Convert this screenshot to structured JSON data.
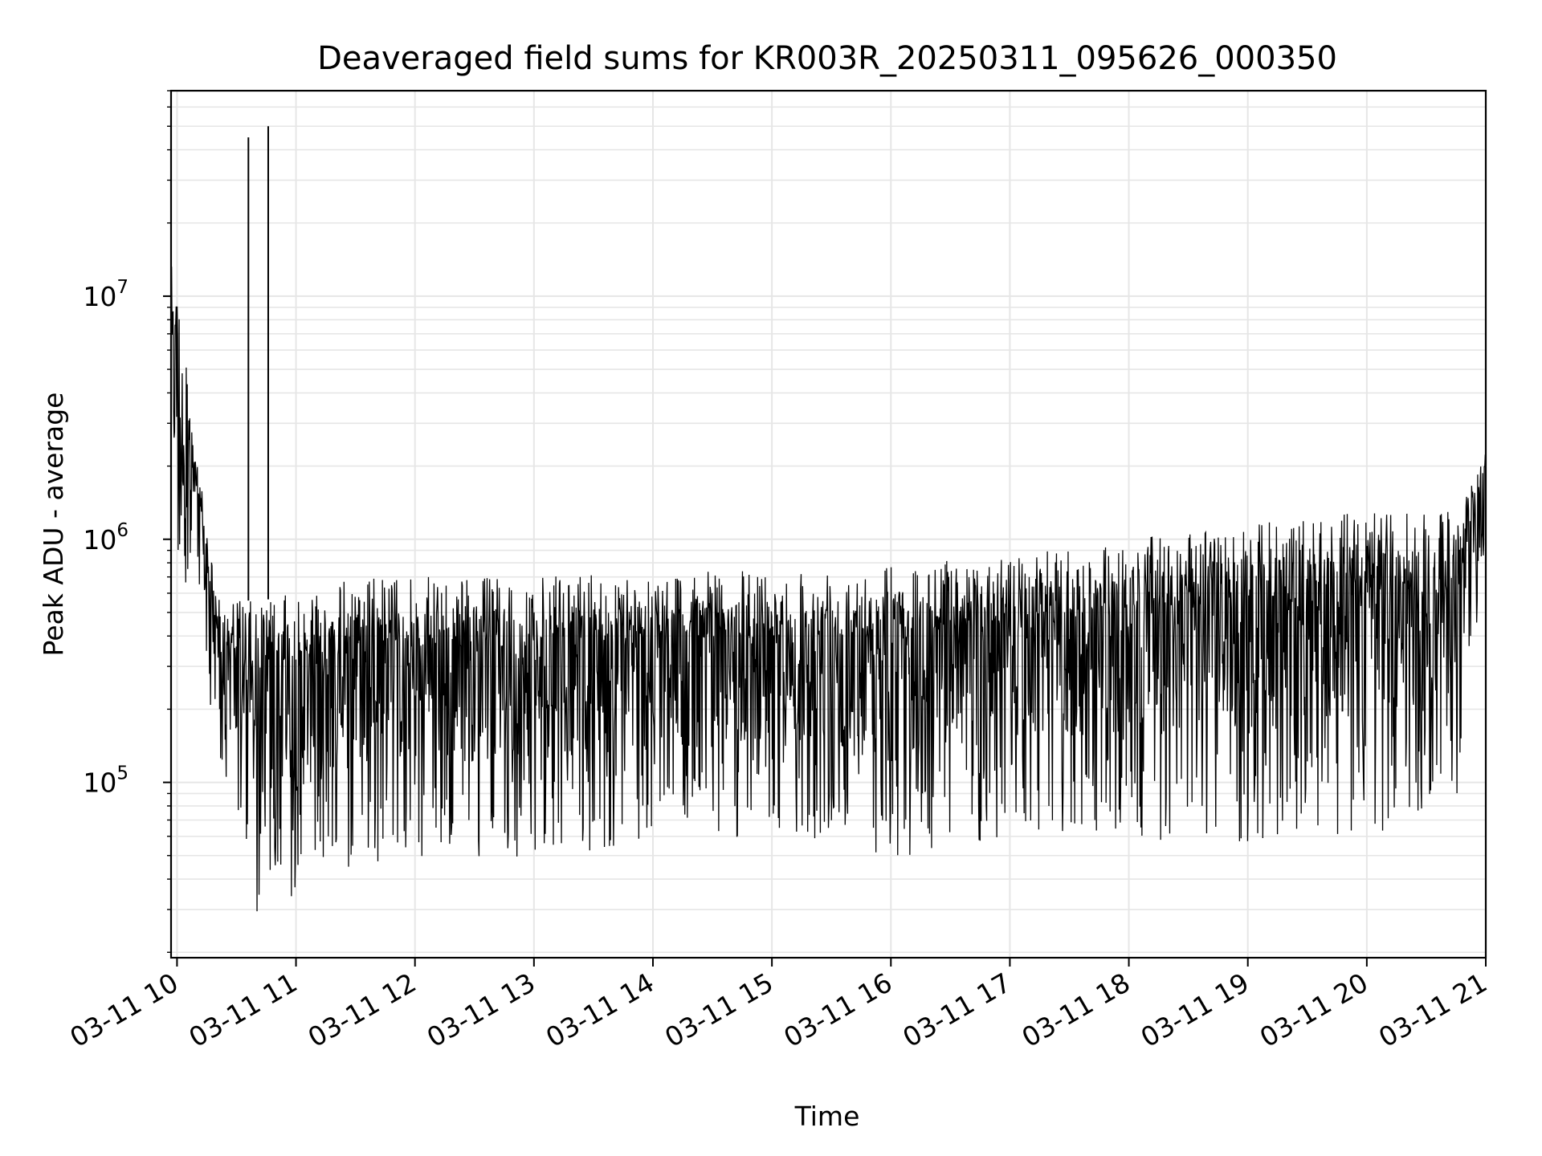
{
  "chart_data": {
    "type": "line",
    "title": "Deaveraged field sums for KR003R_20250311_095626_000350",
    "xlabel": "Time",
    "ylabel": "Peak ADU - average",
    "x_axis_type": "datetime (hours)",
    "xlim": [
      "2025-03-11 09:57",
      "2025-03-11 21:00"
    ],
    "y_scale": "log",
    "ylim": [
      19000,
      70000000
    ],
    "grid": true,
    "legend": "none",
    "x_ticks": [
      "03-11 10",
      "03-11 11",
      "03-11 12",
      "03-11 13",
      "03-11 14",
      "03-11 15",
      "03-11 16",
      "03-11 17",
      "03-11 18",
      "03-11 19",
      "03-11 20",
      "03-11 21"
    ],
    "y_ticks": [
      {
        "value": 100000,
        "base": "10",
        "exp": "5"
      },
      {
        "value": 1000000,
        "base": "10",
        "exp": "6"
      },
      {
        "value": 10000000,
        "base": "10",
        "exp": "7"
      }
    ],
    "series": [
      {
        "values_note": "dense oscillating signal approximated by per-segment envelope",
        "envelope": [
          {
            "x": "2025-03-11 09:57",
            "low": 600000,
            "high": 20000000
          },
          {
            "x": "2025-03-11 10:10",
            "low": 700000,
            "high": 2200000
          },
          {
            "x": "2025-03-11 10:20",
            "low": 120000,
            "high": 600000
          },
          {
            "x": "2025-03-11 10:40",
            "low": 28000,
            "high": 550000
          },
          {
            "x": "2025-03-11 11:30",
            "low": 45000,
            "high": 700000
          },
          {
            "x": "2025-03-11 13:00",
            "low": 50000,
            "high": 700000
          },
          {
            "x": "2025-03-11 15:00",
            "low": 60000,
            "high": 750000
          },
          {
            "x": "2025-03-11 16:00",
            "low": 45000,
            "high": 800000
          },
          {
            "x": "2025-03-11 17:00",
            "low": 60000,
            "high": 850000
          },
          {
            "x": "2025-03-11 18:00",
            "low": 55000,
            "high": 1000000
          },
          {
            "x": "2025-03-11 19:00",
            "low": 55000,
            "high": 1150000
          },
          {
            "x": "2025-03-11 20:00",
            "low": 60000,
            "high": 1300000
          },
          {
            "x": "2025-03-11 20:45",
            "low": 80000,
            "high": 1300000
          },
          {
            "x": "2025-03-11 21:00",
            "low": 900000,
            "high": 2400000
          }
        ],
        "spikes": [
          {
            "x": "2025-03-11 10:36",
            "value": 45000000
          },
          {
            "x": "2025-03-11 10:46",
            "value": 50000000
          }
        ]
      }
    ]
  }
}
